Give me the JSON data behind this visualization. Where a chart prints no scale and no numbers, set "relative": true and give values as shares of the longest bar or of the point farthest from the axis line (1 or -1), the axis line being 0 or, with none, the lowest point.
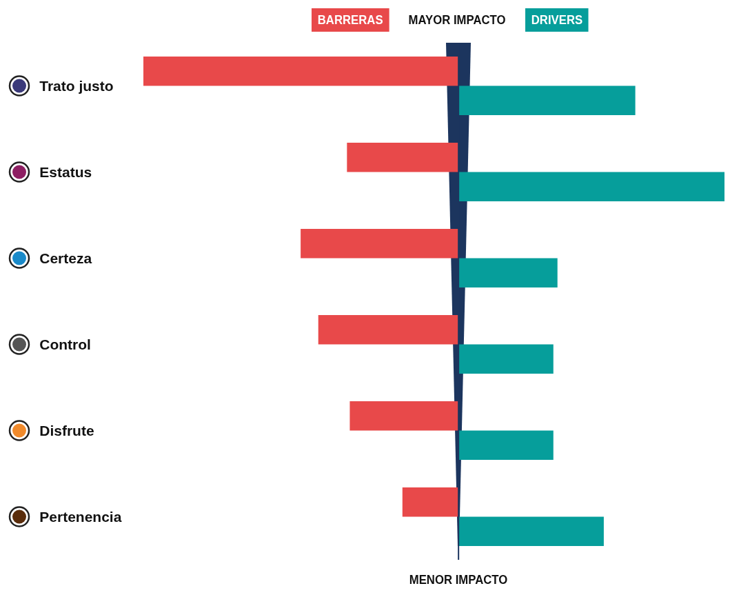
{
  "chart_data": {
    "type": "bar",
    "orientation": "horizontal",
    "relative": true,
    "legend": "top",
    "categories": [
      "Trato justo",
      "Estatus",
      "Certeza",
      "Control",
      "Disfrute",
      "Pertenencia"
    ],
    "series": [
      {
        "name": "BARRERAS",
        "color": "#e8494a",
        "values": [
          -1,
          -0.354,
          -0.501,
          -0.445,
          -0.345,
          -0.178
        ]
      },
      {
        "name": "DRIVERS",
        "color": "#069e9b",
        "values": [
          0.561,
          0.844,
          0.314,
          0.301,
          0.301,
          0.461
        ]
      }
    ],
    "annotations": [
      "MAYOR IMPACTO",
      "MENOR IMPACTO"
    ]
  }
}
